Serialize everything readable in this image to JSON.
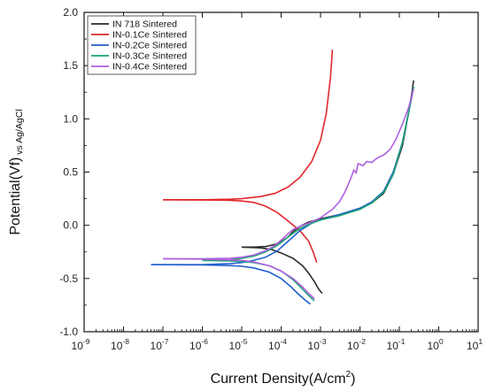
{
  "chart_data": {
    "type": "line",
    "x_scale": "log",
    "xlim": [
      1e-09,
      10
    ],
    "ylim": [
      -1.0,
      2.0
    ],
    "x_ticks": [
      {
        "value": 1e-09,
        "label": "10",
        "exp": "-9"
      },
      {
        "value": 1e-08,
        "label": "10",
        "exp": "-8"
      },
      {
        "value": 1e-07,
        "label": "10",
        "exp": "-7"
      },
      {
        "value": 1e-06,
        "label": "10",
        "exp": "-6"
      },
      {
        "value": 1e-05,
        "label": "10",
        "exp": "-5"
      },
      {
        "value": 0.0001,
        "label": "10",
        "exp": "-4"
      },
      {
        "value": 0.001,
        "label": "10",
        "exp": "-3"
      },
      {
        "value": 0.01,
        "label": "10",
        "exp": "-2"
      },
      {
        "value": 0.1,
        "label": "10",
        "exp": "-1"
      },
      {
        "value": 1,
        "label": "10",
        "exp": "0"
      },
      {
        "value": 10,
        "label": "10",
        "exp": "1"
      }
    ],
    "y_ticks": [
      {
        "value": -1.0,
        "label": "-1.0"
      },
      {
        "value": -0.5,
        "label": "-0.5"
      },
      {
        "value": 0.0,
        "label": "0.0"
      },
      {
        "value": 0.5,
        "label": "0.5"
      },
      {
        "value": 1.0,
        "label": "1.0"
      },
      {
        "value": 1.5,
        "label": "1.5"
      },
      {
        "value": 2.0,
        "label": "2.0"
      }
    ],
    "xlabel": {
      "text": "Current Density(A/cm",
      "sup": "2",
      "close": ")"
    },
    "ylabel": {
      "text": "Potential(Vf)",
      "sub": " vs Ag/AgCl"
    },
    "grid": false,
    "legend_position": "top-left",
    "series": [
      {
        "name": "IN 718 Sintered",
        "color": "#2b2b2b",
        "branches": [
          [
            [
              1e-05,
              -0.205
            ],
            [
              2e-05,
              -0.205
            ],
            [
              4e-05,
              -0.2
            ],
            [
              7e-05,
              -0.18
            ],
            [
              0.0001,
              -0.155
            ],
            [
              0.00015,
              -0.11
            ],
            [
              0.0002,
              -0.06
            ],
            [
              0.0003,
              -0.01
            ],
            [
              0.0005,
              0.03
            ],
            [
              0.001,
              0.06
            ],
            [
              0.003,
              0.1
            ],
            [
              0.01,
              0.16
            ],
            [
              0.02,
              0.21
            ],
            [
              0.04,
              0.3
            ],
            [
              0.07,
              0.48
            ],
            [
              0.12,
              0.75
            ],
            [
              0.17,
              1.05
            ],
            [
              0.21,
              1.25
            ],
            [
              0.23,
              1.36
            ]
          ],
          [
            [
              1e-05,
              -0.205
            ],
            [
              3e-05,
              -0.212
            ],
            [
              6e-05,
              -0.23
            ],
            [
              0.0001,
              -0.26
            ],
            [
              0.0002,
              -0.31
            ],
            [
              0.00035,
              -0.38
            ],
            [
              0.0005,
              -0.45
            ],
            [
              0.0007,
              -0.53
            ],
            [
              0.0009,
              -0.6
            ],
            [
              0.0011,
              -0.64
            ]
          ]
        ]
      },
      {
        "name": "IN-0.1Ce Sintered",
        "color": "#e0282c",
        "branches": [
          [
            [
              1e-07,
              0.24
            ],
            [
              1e-06,
              0.24
            ],
            [
              5e-06,
              0.245
            ],
            [
              1e-05,
              0.25
            ],
            [
              3e-05,
              0.27
            ],
            [
              7e-05,
              0.3
            ],
            [
              0.00015,
              0.36
            ],
            [
              0.0003,
              0.45
            ],
            [
              0.0006,
              0.6
            ],
            [
              0.001,
              0.8
            ],
            [
              0.0014,
              1.05
            ],
            [
              0.0018,
              1.4
            ],
            [
              0.002,
              1.65
            ]
          ],
          [
            [
              1e-07,
              0.24
            ],
            [
              1e-06,
              0.238
            ],
            [
              5e-06,
              0.235
            ],
            [
              1e-05,
              0.228
            ],
            [
              2e-05,
              0.215
            ],
            [
              4e-05,
              0.18
            ],
            [
              8e-05,
              0.12
            ],
            [
              0.00015,
              0.04
            ],
            [
              0.0003,
              -0.05
            ],
            [
              0.0005,
              -0.15
            ],
            [
              0.00065,
              -0.25
            ],
            [
              0.0008,
              -0.35
            ]
          ]
        ]
      },
      {
        "name": "IN-0.2Ce Sintered",
        "color": "#1f5fcf",
        "branches": [
          [
            [
              5e-08,
              -0.37
            ],
            [
              1e-06,
              -0.37
            ],
            [
              5e-06,
              -0.36
            ],
            [
              1e-05,
              -0.35
            ],
            [
              2e-05,
              -0.33
            ],
            [
              4e-05,
              -0.3
            ],
            [
              8e-05,
              -0.24
            ],
            [
              0.00015,
              -0.15
            ],
            [
              0.0003,
              -0.05
            ],
            [
              0.0006,
              0.02
            ],
            [
              0.001,
              0.05
            ],
            [
              0.003,
              0.1
            ],
            [
              0.01,
              0.16
            ],
            [
              0.02,
              0.22
            ],
            [
              0.04,
              0.32
            ],
            [
              0.07,
              0.5
            ],
            [
              0.12,
              0.78
            ],
            [
              0.17,
              1.05
            ],
            [
              0.21,
              1.22
            ],
            [
              0.23,
              1.3
            ]
          ],
          [
            [
              5e-08,
              -0.37
            ],
            [
              1e-06,
              -0.372
            ],
            [
              5e-06,
              -0.378
            ],
            [
              1e-05,
              -0.385
            ],
            [
              2e-05,
              -0.4
            ],
            [
              5e-05,
              -0.44
            ],
            [
              0.0001,
              -0.5
            ],
            [
              0.00018,
              -0.58
            ],
            [
              0.00028,
              -0.65
            ],
            [
              0.0004,
              -0.7
            ],
            [
              0.00055,
              -0.74
            ]
          ]
        ]
      },
      {
        "name": "IN-0.3Ce Sintered",
        "color": "#1aa37a",
        "branches": [
          [
            [
              1e-06,
              -0.33
            ],
            [
              5e-06,
              -0.325
            ],
            [
              1e-05,
              -0.31
            ],
            [
              2e-05,
              -0.29
            ],
            [
              4e-05,
              -0.25
            ],
            [
              8e-05,
              -0.19
            ],
            [
              0.00015,
              -0.11
            ],
            [
              0.0003,
              -0.03
            ],
            [
              0.0006,
              0.02
            ],
            [
              0.001,
              0.05
            ],
            [
              0.003,
              0.09
            ],
            [
              0.01,
              0.15
            ],
            [
              0.02,
              0.21
            ],
            [
              0.04,
              0.31
            ],
            [
              0.07,
              0.48
            ],
            [
              0.12,
              0.78
            ],
            [
              0.17,
              1.05
            ],
            [
              0.21,
              1.22
            ],
            [
              0.23,
              1.3
            ]
          ],
          [
            [
              1e-06,
              -0.33
            ],
            [
              5e-06,
              -0.335
            ],
            [
              1e-05,
              -0.34
            ],
            [
              2e-05,
              -0.35
            ],
            [
              5e-05,
              -0.38
            ],
            [
              0.0001,
              -0.43
            ],
            [
              0.0002,
              -0.51
            ],
            [
              0.00035,
              -0.6
            ],
            [
              0.0005,
              -0.66
            ],
            [
              0.0007,
              -0.71
            ]
          ]
        ]
      },
      {
        "name": "IN-0.4Ce Sintered",
        "color": "#b05fe0",
        "branches": [
          [
            [
              1e-07,
              -0.315
            ],
            [
              1e-06,
              -0.315
            ],
            [
              5e-06,
              -0.31
            ],
            [
              1e-05,
              -0.3
            ],
            [
              2e-05,
              -0.28
            ],
            [
              4e-05,
              -0.24
            ],
            [
              7e-05,
              -0.19
            ],
            [
              0.0001,
              -0.14
            ],
            [
              0.00015,
              -0.08
            ],
            [
              0.0002,
              -0.04
            ],
            [
              0.0003,
              -0.01
            ],
            [
              0.0005,
              0.02
            ],
            [
              0.001,
              0.07
            ],
            [
              0.002,
              0.15
            ],
            [
              0.003,
              0.22
            ],
            [
              0.004,
              0.3
            ],
            [
              0.005,
              0.38
            ],
            [
              0.006,
              0.45
            ],
            [
              0.007,
              0.52
            ],
            [
              0.008,
              0.49
            ],
            [
              0.009,
              0.58
            ],
            [
              0.012,
              0.56
            ],
            [
              0.015,
              0.6
            ],
            [
              0.02,
              0.59
            ],
            [
              0.025,
              0.62
            ],
            [
              0.03,
              0.64
            ],
            [
              0.04,
              0.66
            ],
            [
              0.05,
              0.69
            ],
            [
              0.06,
              0.72
            ],
            [
              0.08,
              0.8
            ],
            [
              0.12,
              0.95
            ],
            [
              0.17,
              1.1
            ],
            [
              0.21,
              1.22
            ],
            [
              0.23,
              1.28
            ]
          ],
          [
            [
              1e-07,
              -0.315
            ],
            [
              1e-06,
              -0.318
            ],
            [
              5e-06,
              -0.325
            ],
            [
              1e-05,
              -0.33
            ],
            [
              2e-05,
              -0.345
            ],
            [
              5e-05,
              -0.38
            ],
            [
              0.0001,
              -0.43
            ],
            [
              0.0002,
              -0.5
            ],
            [
              0.00035,
              -0.58
            ],
            [
              0.0005,
              -0.64
            ],
            [
              0.0007,
              -0.69
            ]
          ]
        ]
      }
    ]
  }
}
